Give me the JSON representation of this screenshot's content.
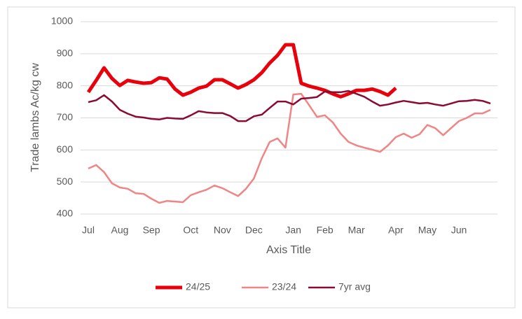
{
  "chart_data": {
    "type": "line",
    "y_label": "Trade lambs Ac/kg cw",
    "x_label": "Axis Title",
    "categories": [
      "Jul",
      null,
      null,
      null,
      "Aug",
      null,
      null,
      null,
      "Sep",
      null,
      null,
      null,
      null,
      "Oct",
      null,
      null,
      null,
      "Nov",
      null,
      null,
      null,
      "Dec",
      null,
      null,
      null,
      null,
      "Jan",
      null,
      null,
      null,
      "Feb",
      null,
      null,
      null,
      "Mar",
      null,
      null,
      null,
      null,
      "Apr",
      null,
      null,
      null,
      "May",
      null,
      null,
      null,
      "Jun",
      null,
      null,
      null,
      null
    ],
    "series": [
      {
        "name": "24/25",
        "color": "#e8000b",
        "values": [
          780,
          817,
          856,
          823,
          801,
          817,
          812,
          808,
          810,
          825,
          821,
          790,
          771,
          780,
          793,
          799,
          819,
          819,
          806,
          793,
          804,
          819,
          841,
          871,
          895,
          928,
          928,
          808,
          799,
          793,
          786,
          775,
          766,
          775,
          786,
          786,
          790,
          782,
          771,
          793,
          null,
          null,
          null,
          null,
          null,
          null,
          null,
          null,
          null,
          null,
          null,
          null
        ]
      },
      {
        "name": "23/24",
        "color": "#f08585",
        "values": [
          542,
          553,
          531,
          496,
          483,
          479,
          465,
          463,
          448,
          435,
          441,
          439,
          437,
          459,
          468,
          476,
          489,
          481,
          468,
          456,
          479,
          511,
          574,
          625,
          636,
          607,
          773,
          775,
          740,
          703,
          708,
          686,
          651,
          625,
          614,
          607,
          601,
          594,
          614,
          640,
          651,
          638,
          649,
          678,
          668,
          646,
          668,
          690,
          700,
          714,
          714,
          725
        ]
      },
      {
        "name": "7yr avg",
        "color": "#8b0a32",
        "values": [
          749,
          755,
          771,
          751,
          725,
          713,
          704,
          701,
          697,
          695,
          700,
          698,
          697,
          708,
          721,
          717,
          715,
          715,
          706,
          690,
          690,
          705,
          710,
          731,
          751,
          751,
          742,
          760,
          762,
          765,
          782,
          780,
          780,
          784,
          775,
          766,
          751,
          738,
          742,
          748,
          753,
          749,
          745,
          747,
          742,
          738,
          745,
          752,
          753,
          756,
          753,
          745
        ]
      }
    ],
    "ylim": [
      400,
      1000
    ],
    "yticks": [
      400,
      500,
      600,
      700,
      800,
      900,
      1000
    ],
    "grid": true,
    "legend": "bottom"
  }
}
